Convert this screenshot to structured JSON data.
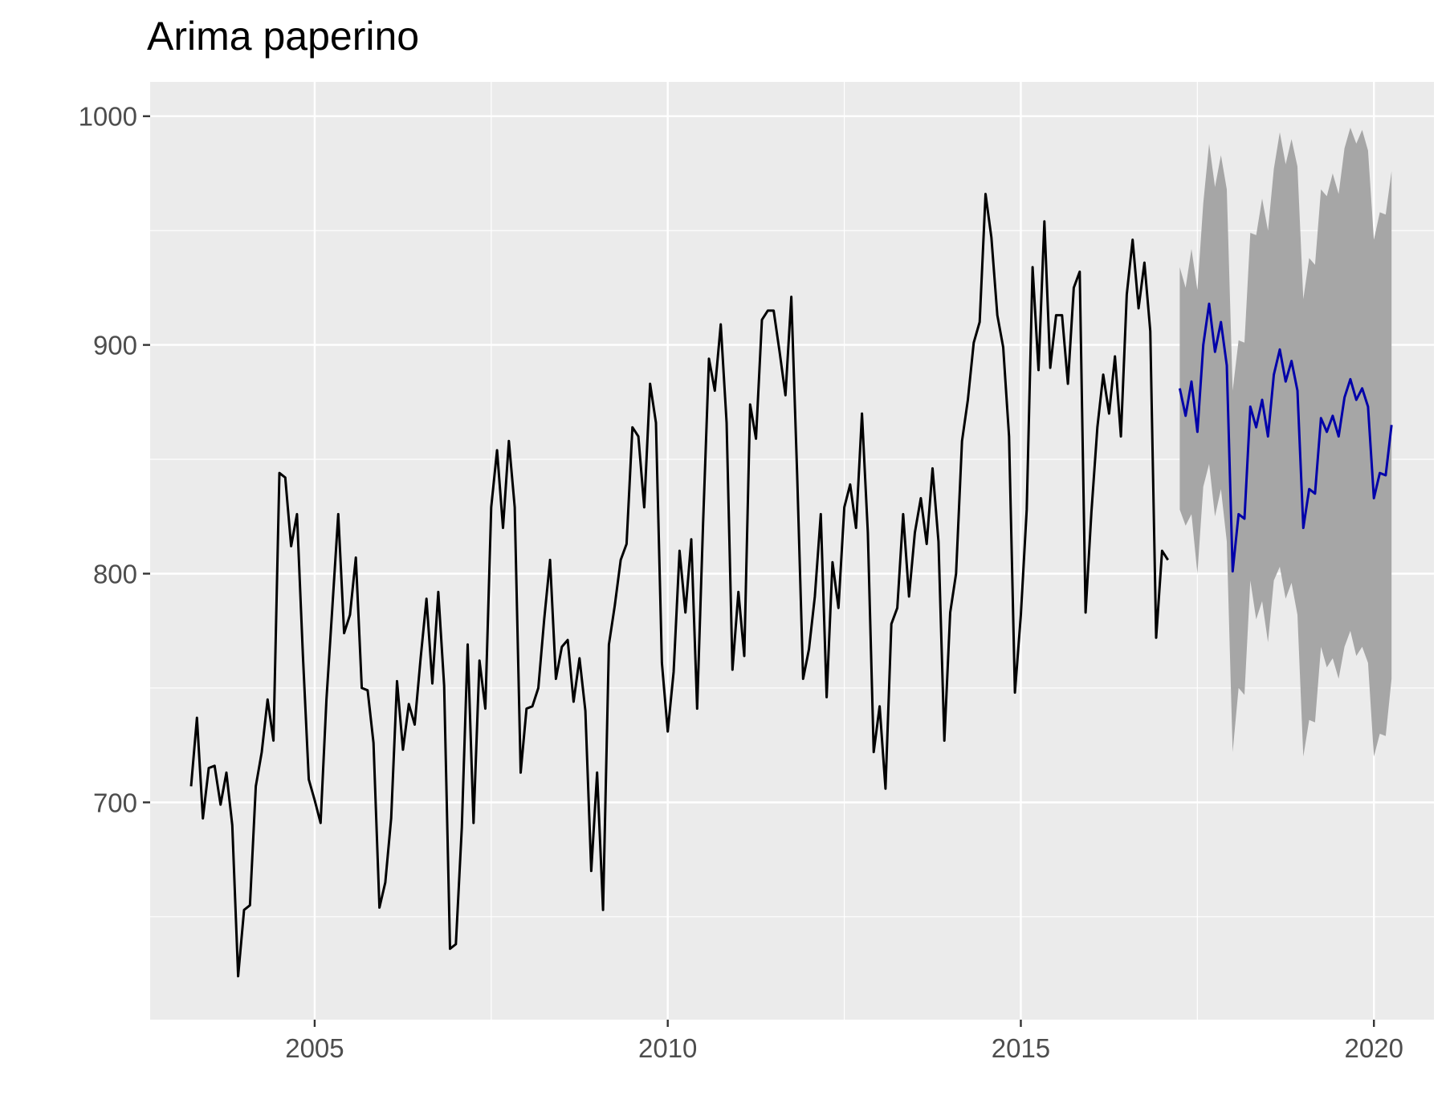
{
  "chart_data": {
    "type": "line",
    "title": "Arima paperino",
    "xlabel": "",
    "ylabel": "",
    "xlim": [
      2002.67,
      2020.85
    ],
    "ylim": [
      605,
      1015
    ],
    "x_ticks": [
      2005,
      2010,
      2015,
      2020
    ],
    "x_tick_labels": [
      "2005",
      "2010",
      "2015",
      "2020"
    ],
    "y_ticks": [
      700,
      800,
      900,
      1000
    ],
    "y_tick_labels": [
      "700",
      "800",
      "900",
      "1000"
    ],
    "grid": true,
    "legend": "none",
    "colors": {
      "panel": "#ebebeb",
      "grid": "#ffffff",
      "observed": "#000000",
      "forecast": "#0000aa",
      "band": "#a6a6a6"
    },
    "series": [
      {
        "role": "observed",
        "x_start": 2003.25,
        "step": 0.0833333,
        "values": [
          707,
          737,
          693,
          715,
          716,
          699,
          713,
          690,
          624,
          653,
          655,
          707,
          722,
          745,
          727,
          844,
          842,
          812,
          826,
          764,
          710,
          701,
          691,
          745,
          785,
          826,
          774,
          782,
          807,
          750,
          749,
          726,
          654,
          665,
          693,
          753,
          723,
          743,
          734,
          763,
          789,
          752,
          792,
          751,
          636,
          638,
          689,
          769,
          691,
          762,
          741,
          829,
          854,
          820,
          858,
          829,
          713,
          741,
          742,
          750,
          780,
          806,
          754,
          768,
          771,
          744,
          763,
          740,
          670,
          713,
          653,
          769,
          786,
          806,
          813,
          864,
          860,
          829,
          883,
          866,
          761,
          731,
          757,
          810,
          783,
          815,
          741,
          822,
          894,
          880,
          909,
          866,
          758,
          792,
          764,
          874,
          859,
          911,
          915,
          915,
          897,
          878,
          921,
          843,
          754,
          767,
          790,
          826,
          746,
          805,
          785,
          829,
          839,
          820,
          870,
          818,
          722,
          742,
          706,
          778,
          785,
          826,
          790,
          818,
          833,
          813,
          846,
          814,
          727,
          783,
          800,
          858,
          876,
          901,
          910,
          966,
          947,
          913,
          899,
          860,
          748,
          782,
          828,
          934,
          889,
          954,
          890,
          913,
          913,
          883,
          925,
          932,
          783,
          827,
          864,
          887,
          870,
          895,
          860,
          922,
          946,
          916,
          936,
          906,
          772,
          810,
          806
        ]
      },
      {
        "role": "forecast",
        "x_start": 2017.25,
        "step": 0.0833333,
        "values": [
          881,
          869,
          884,
          862,
          900,
          918,
          897,
          910,
          891,
          801,
          826,
          824,
          873,
          864,
          876,
          860,
          887,
          898,
          884,
          893,
          880,
          820,
          837,
          835,
          868,
          862,
          869,
          860,
          877,
          885,
          876,
          881,
          873,
          833,
          844,
          843,
          865
        ],
        "upper": [
          934,
          925,
          942,
          924,
          962,
          988,
          969,
          983,
          968,
          880,
          902,
          901,
          949,
          948,
          964,
          950,
          977,
          993,
          979,
          990,
          978,
          920,
          938,
          935,
          968,
          965,
          975,
          966,
          986,
          995,
          988,
          994,
          985,
          946,
          958,
          957,
          976
        ],
        "lower": [
          828,
          821,
          826,
          800,
          838,
          848,
          825,
          837,
          814,
          722,
          750,
          747,
          797,
          780,
          788,
          770,
          797,
          803,
          789,
          796,
          782,
          720,
          736,
          735,
          768,
          759,
          763,
          754,
          768,
          775,
          764,
          768,
          761,
          720,
          730,
          729,
          754
        ]
      }
    ]
  }
}
